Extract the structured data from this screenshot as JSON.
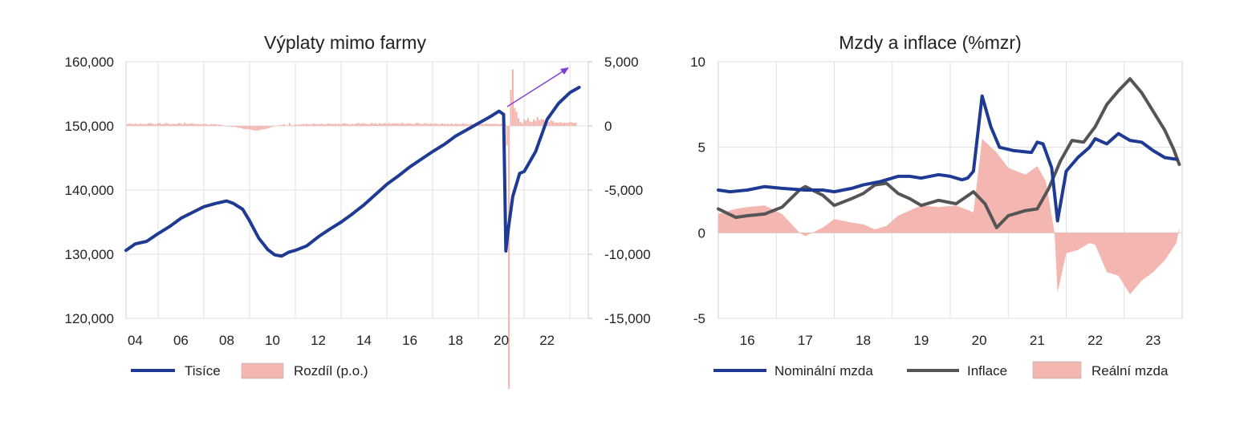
{
  "chart_data": [
    {
      "type": "line",
      "title": "Výplaty mimo farmy",
      "xlabel": "",
      "ylabel": "",
      "x_tick_labels": [
        "04",
        "06",
        "08",
        "10",
        "12",
        "14",
        "16",
        "18",
        "20",
        "22"
      ],
      "x_range": [
        2003.6,
        2023.8
      ],
      "ylim": [
        120000,
        160000
      ],
      "y_tick_labels": [
        "160,000",
        "150,000",
        "140,000",
        "130,000",
        "120,000"
      ],
      "y_ticks": [
        160000,
        150000,
        140000,
        130000,
        120000
      ],
      "y2lim": [
        -15000,
        5000
      ],
      "y2_tick_labels": [
        "5,000",
        "0",
        "-5,000",
        "-10,000",
        "-15,000"
      ],
      "y2_ticks": [
        5000,
        0,
        -5000,
        -10000,
        -15000
      ],
      "grid": true,
      "legend": "bottom",
      "series": [
        {
          "name": "Tisíce",
          "kind": "line",
          "color": "#1f3a93",
          "axis": "left",
          "points": [
            [
              2003.6,
              130600
            ],
            [
              2004.0,
              131600
            ],
            [
              2004.5,
              132000
            ],
            [
              2005.0,
              133200
            ],
            [
              2005.5,
              134300
            ],
            [
              2006.0,
              135600
            ],
            [
              2006.5,
              136500
            ],
            [
              2007.0,
              137400
            ],
            [
              2007.5,
              137900
            ],
            [
              2008.0,
              138300
            ],
            [
              2008.3,
              137900
            ],
            [
              2008.7,
              137000
            ],
            [
              2009.0,
              135200
            ],
            [
              2009.4,
              132500
            ],
            [
              2009.8,
              130700
            ],
            [
              2010.1,
              129900
            ],
            [
              2010.4,
              129700
            ],
            [
              2010.7,
              130300
            ],
            [
              2011.0,
              130600
            ],
            [
              2011.5,
              131300
            ],
            [
              2012.0,
              132700
            ],
            [
              2012.5,
              133900
            ],
            [
              2013.0,
              135000
            ],
            [
              2013.5,
              136300
            ],
            [
              2014.0,
              137700
            ],
            [
              2014.5,
              139300
            ],
            [
              2015.0,
              140900
            ],
            [
              2015.5,
              142200
            ],
            [
              2016.0,
              143600
            ],
            [
              2016.5,
              144800
            ],
            [
              2017.0,
              146000
            ],
            [
              2017.5,
              147100
            ],
            [
              2018.0,
              148400
            ],
            [
              2018.5,
              149400
            ],
            [
              2019.0,
              150400
            ],
            [
              2019.5,
              151400
            ],
            [
              2019.9,
              152300
            ],
            [
              2020.1,
              151800
            ],
            [
              2020.2,
              130500
            ],
            [
              2020.3,
              133800
            ],
            [
              2020.5,
              139000
            ],
            [
              2020.8,
              142600
            ],
            [
              2021.0,
              142900
            ],
            [
              2021.5,
              146000
            ],
            [
              2022.0,
              151000
            ],
            [
              2022.5,
              153500
            ],
            [
              2023.0,
              155200
            ],
            [
              2023.4,
              156000
            ]
          ]
        },
        {
          "name": "Rozdíl (p.o.)",
          "kind": "bar",
          "color": "#f4b6b0",
          "axis": "right",
          "monthly_values_2003_09_to_2023_05": [
            150,
            180,
            160,
            130,
            200,
            120,
            150,
            180,
            130,
            160,
            140,
            200,
            220,
            180,
            110,
            150,
            190,
            240,
            130,
            160,
            220,
            180,
            150,
            120,
            170,
            140,
            160,
            210,
            190,
            130,
            250,
            170,
            140,
            180,
            200,
            160,
            140,
            150,
            130,
            120,
            160,
            170,
            110,
            100,
            140,
            120,
            150,
            90,
            110,
            80,
            60,
            30,
            -20,
            -40,
            -60,
            -80,
            -60,
            -110,
            -140,
            -170,
            -200,
            -240,
            -260,
            -270,
            -280,
            -310,
            -340,
            -360,
            -380,
            -330,
            -300,
            -270,
            -260,
            -220,
            -180,
            -120,
            -60,
            -30,
            30,
            40,
            60,
            80,
            140,
            50,
            20,
            220,
            60,
            -40,
            130,
            80,
            100,
            120,
            150,
            110,
            180,
            130,
            100,
            160,
            190,
            120,
            140,
            160,
            170,
            130,
            110,
            190,
            180,
            130,
            170,
            150,
            140,
            160,
            120,
            190,
            200,
            160,
            150,
            110,
            170,
            120,
            190,
            230,
            160,
            210,
            200,
            170,
            140,
            150,
            220,
            180,
            200,
            120,
            210,
            170,
            180,
            220,
            160,
            230,
            150,
            190,
            200,
            210,
            180,
            160,
            240,
            180,
            150,
            220,
            190,
            170,
            130,
            210,
            250,
            190,
            160,
            150,
            230,
            170,
            150,
            210,
            140,
            200,
            180,
            120,
            160,
            190,
            170,
            140,
            150,
            120,
            200,
            110,
            180,
            160,
            120,
            150,
            200,
            170,
            140,
            100,
            160,
            150,
            130,
            160,
            230,
            190,
            160,
            120,
            200,
            150,
            180,
            140,
            150,
            170,
            130,
            120,
            160,
            180,
            150,
            -1500,
            -20500,
            2800,
            4400,
            1400,
            1100,
            600,
            300,
            200,
            500,
            400,
            600,
            350,
            300,
            500,
            400,
            700,
            450,
            550,
            500,
            400,
            350,
            300,
            450,
            380,
            260,
            280,
            240,
            300,
            220,
            250,
            260,
            240,
            300,
            280,
            230,
            250
          ]
        }
      ]
    },
    {
      "type": "line",
      "title": "Mzdy a inflace (%mzr)",
      "xlabel": "",
      "ylabel": "",
      "x_tick_labels": [
        "16",
        "17",
        "18",
        "19",
        "20",
        "21",
        "22",
        "23"
      ],
      "x_range": [
        2015.5,
        2023.5
      ],
      "ylim": [
        -5,
        10
      ],
      "y_tick_labels": [
        "10",
        "5",
        "0",
        "-5"
      ],
      "y_ticks": [
        10,
        5,
        0,
        -5
      ],
      "grid": true,
      "legend": "bottom",
      "series": [
        {
          "name": "Nominální mzda",
          "kind": "line",
          "color": "#1f3a93",
          "points": [
            [
              2015.5,
              2.5
            ],
            [
              2015.7,
              2.4
            ],
            [
              2016.0,
              2.5
            ],
            [
              2016.3,
              2.7
            ],
            [
              2016.6,
              2.6
            ],
            [
              2017.0,
              2.5
            ],
            [
              2017.3,
              2.5
            ],
            [
              2017.5,
              2.4
            ],
            [
              2017.8,
              2.6
            ],
            [
              2018.0,
              2.8
            ],
            [
              2018.3,
              3.0
            ],
            [
              2018.6,
              3.3
            ],
            [
              2018.8,
              3.3
            ],
            [
              2019.0,
              3.2
            ],
            [
              2019.3,
              3.4
            ],
            [
              2019.5,
              3.3
            ],
            [
              2019.7,
              3.1
            ],
            [
              2019.8,
              3.2
            ],
            [
              2019.9,
              3.6
            ],
            [
              2020.05,
              8.0
            ],
            [
              2020.2,
              6.2
            ],
            [
              2020.35,
              5.0
            ],
            [
              2020.6,
              4.8
            ],
            [
              2020.9,
              4.7
            ],
            [
              2021.0,
              5.3
            ],
            [
              2021.1,
              5.2
            ],
            [
              2021.25,
              3.8
            ],
            [
              2021.35,
              0.7
            ],
            [
              2021.5,
              3.6
            ],
            [
              2021.7,
              4.4
            ],
            [
              2021.9,
              5.0
            ],
            [
              2022.0,
              5.5
            ],
            [
              2022.2,
              5.2
            ],
            [
              2022.4,
              5.8
            ],
            [
              2022.6,
              5.4
            ],
            [
              2022.8,
              5.3
            ],
            [
              2023.0,
              4.8
            ],
            [
              2023.2,
              4.4
            ],
            [
              2023.4,
              4.3
            ]
          ]
        },
        {
          "name": "Inflace",
          "kind": "line",
          "color": "#555555",
          "points": [
            [
              2015.5,
              1.4
            ],
            [
              2015.8,
              0.9
            ],
            [
              2016.0,
              1.0
            ],
            [
              2016.3,
              1.1
            ],
            [
              2016.6,
              1.5
            ],
            [
              2016.9,
              2.5
            ],
            [
              2017.0,
              2.7
            ],
            [
              2017.3,
              2.2
            ],
            [
              2017.5,
              1.6
            ],
            [
              2017.8,
              2.0
            ],
            [
              2018.0,
              2.3
            ],
            [
              2018.2,
              2.8
            ],
            [
              2018.4,
              2.9
            ],
            [
              2018.6,
              2.3
            ],
            [
              2018.8,
              2.0
            ],
            [
              2019.0,
              1.6
            ],
            [
              2019.3,
              1.9
            ],
            [
              2019.6,
              1.7
            ],
            [
              2019.9,
              2.4
            ],
            [
              2020.1,
              1.7
            ],
            [
              2020.3,
              0.3
            ],
            [
              2020.5,
              1.0
            ],
            [
              2020.8,
              1.3
            ],
            [
              2021.0,
              1.4
            ],
            [
              2021.2,
              2.6
            ],
            [
              2021.4,
              4.2
            ],
            [
              2021.6,
              5.4
            ],
            [
              2021.8,
              5.3
            ],
            [
              2022.0,
              6.2
            ],
            [
              2022.2,
              7.5
            ],
            [
              2022.4,
              8.3
            ],
            [
              2022.6,
              9.0
            ],
            [
              2022.8,
              8.2
            ],
            [
              2023.0,
              7.1
            ],
            [
              2023.2,
              6.0
            ],
            [
              2023.35,
              4.9
            ],
            [
              2023.45,
              4.0
            ]
          ]
        },
        {
          "name": "Reální mzda",
          "kind": "area",
          "color": "#f4b6b0",
          "points": [
            [
              2015.5,
              1.1
            ],
            [
              2015.8,
              1.4
            ],
            [
              2016.0,
              1.5
            ],
            [
              2016.3,
              1.6
            ],
            [
              2016.6,
              1.1
            ],
            [
              2016.9,
              0.0
            ],
            [
              2017.0,
              -0.2
            ],
            [
              2017.3,
              0.3
            ],
            [
              2017.5,
              0.8
            ],
            [
              2017.8,
              0.6
            ],
            [
              2018.0,
              0.5
            ],
            [
              2018.2,
              0.2
            ],
            [
              2018.4,
              0.4
            ],
            [
              2018.6,
              1.0
            ],
            [
              2018.8,
              1.3
            ],
            [
              2019.0,
              1.6
            ],
            [
              2019.3,
              1.5
            ],
            [
              2019.6,
              1.6
            ],
            [
              2019.9,
              1.2
            ],
            [
              2020.05,
              5.5
            ],
            [
              2020.3,
              4.7
            ],
            [
              2020.5,
              3.8
            ],
            [
              2020.8,
              3.4
            ],
            [
              2021.0,
              3.9
            ],
            [
              2021.15,
              3.0
            ],
            [
              2021.3,
              0.0
            ],
            [
              2021.35,
              -3.5
            ],
            [
              2021.5,
              -1.2
            ],
            [
              2021.7,
              -1.0
            ],
            [
              2021.9,
              -0.6
            ],
            [
              2022.0,
              -0.7
            ],
            [
              2022.2,
              -2.3
            ],
            [
              2022.4,
              -2.5
            ],
            [
              2022.6,
              -3.6
            ],
            [
              2022.8,
              -2.8
            ],
            [
              2023.0,
              -2.3
            ],
            [
              2023.2,
              -1.6
            ],
            [
              2023.4,
              -0.6
            ],
            [
              2023.45,
              0.3
            ]
          ]
        }
      ]
    }
  ]
}
